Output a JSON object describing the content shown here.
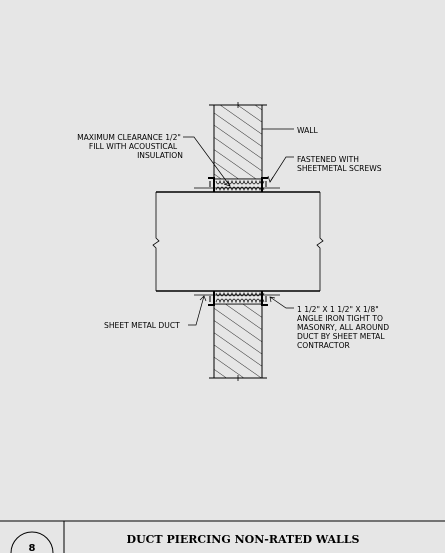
{
  "labels": {
    "wall": "WALL",
    "max_clearance": [
      "MAXIMUM CLEARANCE 1/2\"",
      "FILL WITH ACOUSTICAL",
      "INSULATION"
    ],
    "fastened": [
      "FASTENED WITH",
      "SHEETMETAL SCREWS"
    ],
    "sheet_metal_duct": "SHEET METAL DUCT",
    "angle_iron": [
      "1 1/2\" X 1 1/2\" X 1/8\"",
      "ANGLE IRON TIGHT TO",
      "MASONRY, ALL AROUND",
      "DUCT BY SHEET METAL",
      "CONTRACTOR"
    ]
  },
  "title_block": {
    "title": "DUCT PIERCING NON-RATED WALLS",
    "detail_number": "8"
  }
}
